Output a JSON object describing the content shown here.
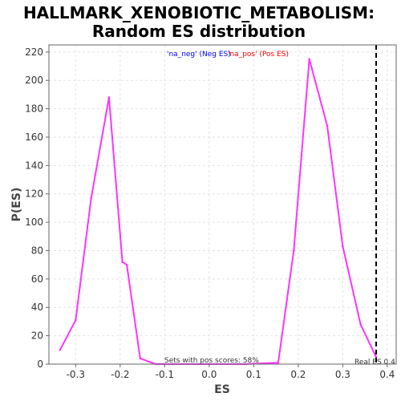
{
  "chart_data": {
    "type": "line",
    "title_line1": "HALLMARK_XENOBIOTIC_METABOLISM:",
    "title_line2": "Random ES distribution",
    "xlabel": "ES",
    "ylabel": "P(ES)",
    "xlim": [
      -0.36,
      0.42
    ],
    "ylim": [
      0,
      225
    ],
    "x_ticks": [
      -0.3,
      -0.2,
      -0.1,
      0.0,
      0.1,
      0.2,
      0.3,
      0.4
    ],
    "x_tick_labels": [
      "-0.3",
      "-0.2",
      "-0.1",
      "0.0",
      "0.1",
      "0.2",
      "0.3",
      "0.4"
    ],
    "y_ticks": [
      0,
      20,
      40,
      60,
      80,
      100,
      120,
      140,
      160,
      180,
      200,
      220
    ],
    "y_tick_labels": [
      "0",
      "20",
      "40",
      "60",
      "80",
      "100",
      "120",
      "140",
      "160",
      "180",
      "200",
      "220"
    ],
    "grid": true,
    "legend": {
      "placement": "top-center",
      "neg_text": "'na_neg' (Neg ES)",
      "pos_text": "'na_pos' (Pos ES)",
      "neg_color": "#0000ff",
      "pos_color": "#ff0000"
    },
    "series": [
      {
        "color": "#ff33ff",
        "x": [
          -0.335,
          -0.3,
          -0.265,
          -0.225,
          -0.195,
          -0.185,
          -0.155,
          -0.12,
          -0.08,
          0.0,
          0.08,
          0.155,
          0.19,
          0.225,
          0.265,
          0.3,
          0.34,
          0.375
        ],
        "y": [
          10,
          31,
          117,
          188,
          72,
          70,
          4,
          0,
          0,
          0,
          0,
          1,
          80,
          215,
          168,
          83,
          28,
          5
        ]
      }
    ],
    "real_es": {
      "value": 0.375,
      "label": "Real ES 0.4"
    },
    "annotation": "Sets with pos scores: 58%"
  }
}
